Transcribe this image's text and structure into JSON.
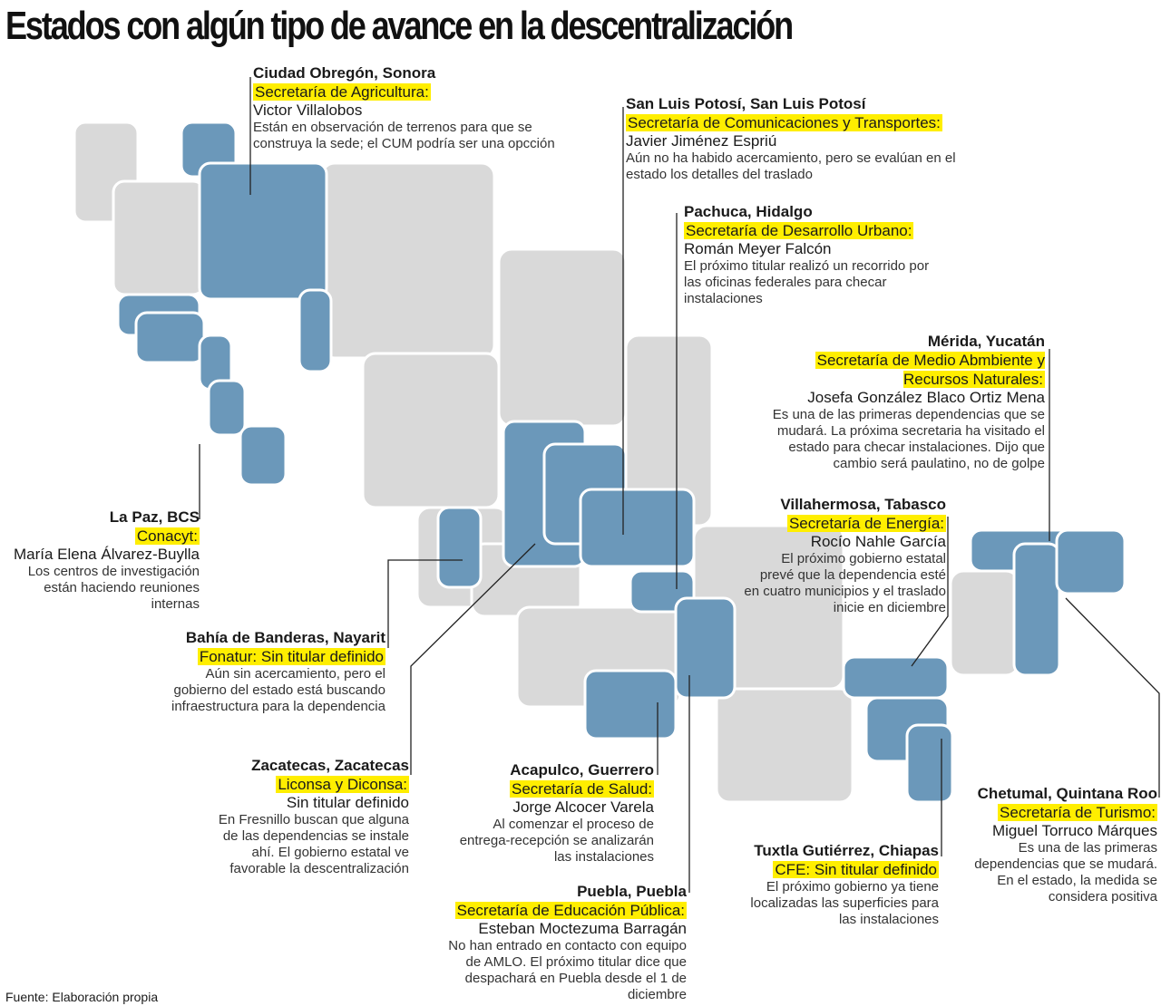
{
  "title": "Estados con algún tipo de avance en la descentralización",
  "source": "Fuente: Elaboración propia",
  "colors": {
    "highlighted_state": "#6b98ba",
    "other_state": "#d9d9d9",
    "label_highlight": "#ffee00"
  },
  "callouts": [
    {
      "city": "Ciudad Obregón, Sonora",
      "agency": "Secretaría de Agricultura:",
      "person": "Victor Villalobos",
      "desc": "Están en observación de terrenos para que se construya la sede; el CUM podría ser una opcción"
    },
    {
      "city": "San Luis Potosí, San Luis Potosí",
      "agency": "Secretaría de Comunicaciones y Transportes:",
      "person": "Javier Jiménez Espriú",
      "desc": "Aún no ha habido acercamiento, pero se evalúan en el estado los detalles del traslado"
    },
    {
      "city": "Pachuca, Hidalgo",
      "agency": "Secretaría de Desarrollo Urbano:",
      "person": "Román Meyer Falcón",
      "desc": "El próximo titular realizó un recorrido por las oficinas federales para checar instalaciones"
    },
    {
      "city": "Mérida, Yucatán",
      "agency": "Secretaría de Medio Abmbiente y Recursos Naturales:",
      "person": "Josefa González Blaco Ortiz Mena",
      "desc": "Es una de las primeras dependencias que se mudará. La próxima secretaria ha visitado el estado para checar instalaciones. Dijo que cambio será paulatino, no de golpe"
    },
    {
      "city": "La Paz, BCS",
      "agency": "Conacyt:",
      "person": "María Elena Álvarez-Buylla",
      "desc": "Los centros de investigación están haciendo reuniones internas"
    },
    {
      "city": "Villahermosa, Tabasco",
      "agency": "Secretaría de Energía:",
      "person": "Rocío Nahle García",
      "desc": "El próximo gobierno estatal prevé que la dependencia esté en cuatro municipios y el traslado inicie en diciembre"
    },
    {
      "city": "Bahía de Banderas, Nayarit",
      "agency": "Fonatur: Sin titular definido",
      "person": "",
      "desc": "Aún sin acercamiento, pero el gobierno del estado está buscando infraestructura para la dependencia"
    },
    {
      "city": "Zacatecas, Zacatecas",
      "agency": "Liconsa y Diconsa:",
      "person": "Sin titular definido",
      "desc": "En Fresnillo buscan que alguna de las dependencias se instale ahí. El gobierno estatal ve favorable la descentralización"
    },
    {
      "city": "Acapulco, Guerrero",
      "agency": "Secretaría de Salud:",
      "person": "Jorge Alcocer Varela",
      "desc": "Al comenzar el proceso de entrega-recepción se analizarán las instalaciones"
    },
    {
      "city": "Chetumal, Quintana Roo",
      "agency": "Secretaría de Turismo:",
      "person": "Miguel Torruco Márques",
      "desc": "Es una de las primeras dependencias que se mudará. En el estado, la medida se considera positiva"
    },
    {
      "city": "Tuxtla Gutiérrez, Chiapas",
      "agency": "CFE: Sin titular definido",
      "person": "",
      "desc": "El próximo gobierno ya tiene localizadas las superficies para las instalaciones"
    },
    {
      "city": "Puebla, Puebla",
      "agency": "Secretaría de Educación Pública:",
      "person": "Esteban Moctezuma Barragán",
      "desc": "No han entrado en contacto con equipo de AMLO. El próximo titular dice que despachará en Puebla desde el 1 de diciembre"
    }
  ]
}
